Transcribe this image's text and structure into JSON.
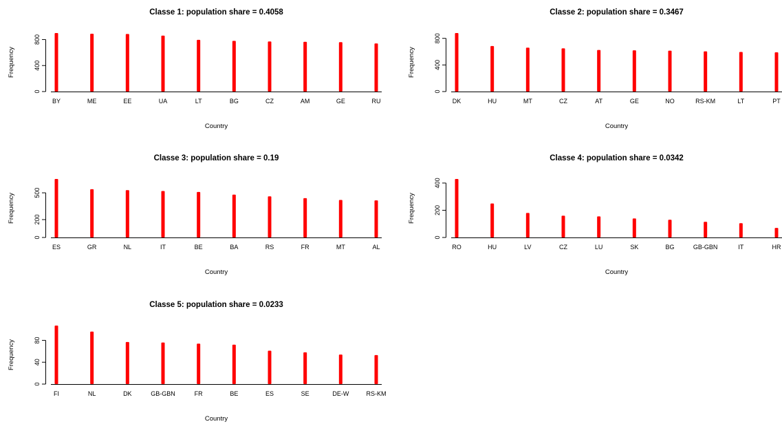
{
  "figure": {
    "color_bars": "#ff0000",
    "color_axes": "#000000"
  },
  "chart_data": [
    {
      "type": "bar",
      "title": "Classe 1: population share =  0.4058",
      "xlabel": "Country",
      "ylabel": "Frequency",
      "categories": [
        "BY",
        "ME",
        "EE",
        "UA",
        "LT",
        "BG",
        "CZ",
        "AM",
        "GE",
        "RU"
      ],
      "values": [
        900,
        890,
        885,
        860,
        795,
        780,
        770,
        765,
        760,
        740
      ],
      "ylim": [
        0,
        900
      ],
      "yticks": [
        0,
        400,
        800
      ],
      "ytick_labels": [
        "0",
        "400",
        "800"
      ]
    },
    {
      "type": "bar",
      "title": "Classe 2: population share =  0.3467",
      "xlabel": "Country",
      "ylabel": "Frequency",
      "categories": [
        "DK",
        "HU",
        "MT",
        "CZ",
        "AT",
        "GE",
        "NO",
        "RS-KM",
        "LT",
        "PT"
      ],
      "values": [
        880,
        685,
        660,
        650,
        625,
        620,
        615,
        605,
        595,
        590
      ],
      "ylim": [
        0,
        880
      ],
      "yticks": [
        0,
        400,
        800
      ],
      "ytick_labels": [
        "0",
        "400",
        "800"
      ]
    },
    {
      "type": "bar",
      "title": "Classe 3: population share =  0.19",
      "xlabel": "Country",
      "ylabel": "Frequency",
      "categories": [
        "ES",
        "GR",
        "NL",
        "IT",
        "BE",
        "BA",
        "RS",
        "FR",
        "MT",
        "AL"
      ],
      "values": [
        655,
        540,
        530,
        520,
        510,
        480,
        460,
        440,
        420,
        415
      ],
      "ylim": [
        0,
        655
      ],
      "yticks": [
        0,
        200,
        500
      ],
      "ytick_labels": [
        "0",
        "200",
        "500"
      ]
    },
    {
      "type": "bar",
      "title": "Classe 4: population share =  0.0342",
      "xlabel": "Country",
      "ylabel": "Frequency",
      "categories": [
        "RO",
        "HU",
        "LV",
        "CZ",
        "LU",
        "SK",
        "BG",
        "GB-GBN",
        "IT",
        "HR"
      ],
      "values": [
        430,
        250,
        180,
        160,
        155,
        140,
        130,
        115,
        105,
        70
      ],
      "ylim": [
        0,
        430
      ],
      "yticks": [
        0,
        200,
        400
      ],
      "ytick_labels": [
        "0",
        "200",
        "400"
      ]
    },
    {
      "type": "bar",
      "title": "Classe 5: population share =  0.0233",
      "xlabel": "Country",
      "ylabel": "Frequency",
      "categories": [
        "FI",
        "NL",
        "DK",
        "GB-GBN",
        "FR",
        "BE",
        "ES",
        "SE",
        "DE-W",
        "RS-KM"
      ],
      "values": [
        107,
        96,
        77,
        76,
        74,
        72,
        61,
        58,
        54,
        53
      ],
      "ylim": [
        0,
        107
      ],
      "yticks": [
        0,
        40,
        80
      ],
      "ytick_labels": [
        "0",
        "40",
        "80"
      ]
    }
  ]
}
